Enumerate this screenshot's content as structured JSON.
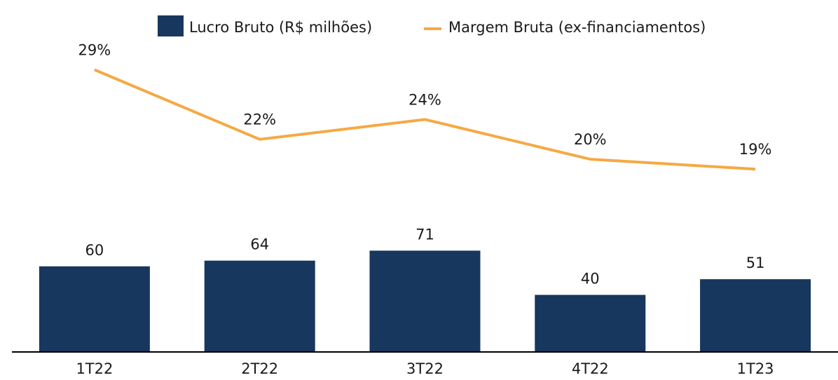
{
  "chart_data": {
    "type": "bar_line",
    "categories": [
      "1T22",
      "2T22",
      "3T22",
      "4T22",
      "1T23"
    ],
    "series": [
      {
        "name": "Lucro Bruto (R$ milhões)",
        "type": "bar",
        "color": "#17375e",
        "values": [
          60,
          64,
          71,
          40,
          51
        ]
      },
      {
        "name": "Margem Bruta (ex-financiamentos)",
        "type": "line",
        "axis": "y2",
        "color": "#f5a944",
        "values": [
          29,
          22,
          24,
          20,
          19
        ],
        "value_labels": [
          "29%",
          "22%",
          "24%",
          "20%",
          "19%"
        ]
      }
    ],
    "ylim": [
      0,
      227
    ],
    "y2lim": [
      0.6,
      33.2
    ],
    "legend": "top"
  }
}
